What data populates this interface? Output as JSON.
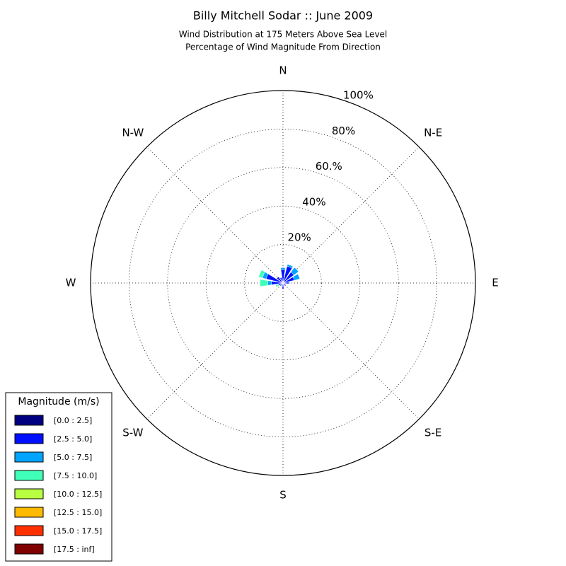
{
  "chart_data": {
    "type": "windrose",
    "title": "Billy Mitchell Sodar :: June 2009",
    "subtitle": [
      "Wind Distribution at 175 Meters Above Sea Level",
      "Percentage of Wind Magnitude From Direction"
    ],
    "angle_labels": [
      "N",
      "N-E",
      "E",
      "S-E",
      "S",
      "S-W",
      "W",
      "N-W"
    ],
    "x": [
      0,
      22.5,
      45,
      67.5,
      90,
      112.5,
      135,
      157.5,
      180,
      202.5,
      225,
      247.5,
      270,
      292.5,
      315,
      337.5
    ],
    "rlim": [
      0,
      100
    ],
    "rticks": [
      {
        "value": 20,
        "label": "20%"
      },
      {
        "value": 40,
        "label": "40%"
      },
      {
        "value": 60,
        "label": "60.%"
      },
      {
        "value": 80,
        "label": "80%"
      },
      {
        "value": 100,
        "label": "100%"
      }
    ],
    "grid": true,
    "legend_title": "Magnitude (m/s)",
    "legend": "lower left",
    "series": [
      {
        "name": "[0.0 : 2.5]",
        "color": "#000080",
        "values": [
          1,
          1,
          1,
          1,
          1,
          0.5,
          0.5,
          0.5,
          1,
          0.5,
          0.5,
          0.5,
          1,
          1,
          1,
          1
        ]
      },
      {
        "name": "[2.5 : 5.0]",
        "color": "#0010ff",
        "values": [
          6,
          8,
          6,
          5,
          2,
          1,
          1,
          1,
          2,
          1,
          1,
          2,
          5,
          8,
          3,
          2
        ]
      },
      {
        "name": "[5.0 : 7.5]",
        "color": "#00a4ff",
        "values": [
          1,
          1,
          3,
          3,
          0.5,
          0,
          0,
          0,
          0,
          0,
          0,
          0.5,
          2,
          2,
          0,
          0
        ]
      },
      {
        "name": "[7.5 : 10.0]",
        "color": "#40ffb7",
        "values": [
          0,
          0,
          0,
          0,
          0,
          0,
          0,
          0,
          0,
          0,
          0,
          1,
          4,
          2,
          0,
          0
        ]
      },
      {
        "name": "[10.0 : 12.5]",
        "color": "#b7ff40",
        "values": [
          0,
          0,
          0,
          0,
          0,
          0,
          0,
          0,
          0,
          0,
          0,
          0,
          0,
          0,
          0,
          0
        ]
      },
      {
        "name": "[12.5 : 15.0]",
        "color": "#ffb900",
        "values": [
          0,
          0,
          0,
          0,
          0,
          0,
          0,
          0,
          0,
          0,
          0,
          0,
          0,
          0,
          0,
          0
        ]
      },
      {
        "name": "[15.0 : 17.5]",
        "color": "#ff3000",
        "values": [
          0,
          0,
          0,
          0,
          0,
          0,
          0,
          0,
          0,
          0,
          0,
          0,
          0,
          0,
          0,
          0
        ]
      },
      {
        "name": "[17.5 : inf]",
        "color": "#800000",
        "values": [
          0,
          0,
          0,
          0,
          0,
          0,
          0,
          0,
          0,
          0,
          0,
          0,
          0,
          0,
          0,
          0
        ]
      }
    ]
  }
}
